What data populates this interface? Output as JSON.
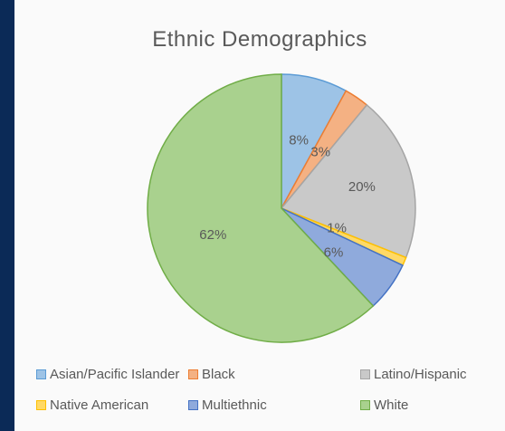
{
  "chart_data": {
    "type": "pie",
    "title": "Ethnic Demographics",
    "categories": [
      "Asian/Pacific Islander",
      "Black",
      "Latino/Hispanic",
      "Native American",
      "Multiethnic",
      "White"
    ],
    "values": [
      8,
      3,
      20,
      1,
      6,
      62
    ],
    "data_labels": [
      "8%",
      "3%",
      "20%",
      "1%",
      "6%",
      "62%"
    ],
    "colors": [
      "#9dc3e6",
      "#f4b183",
      "#c9c9c9",
      "#ffd966",
      "#8faadc",
      "#a9d18e"
    ],
    "stroke_colors": [
      "#5b9bd5",
      "#ed7d31",
      "#a5a5a5",
      "#ffc000",
      "#4472c4",
      "#70ad47"
    ],
    "legend_position": "bottom"
  }
}
